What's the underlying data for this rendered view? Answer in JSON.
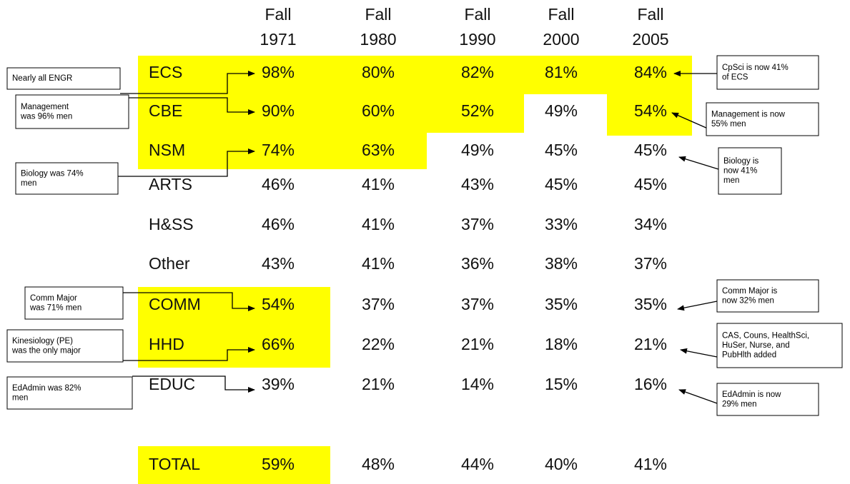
{
  "table": {
    "columns": [
      [
        "Fall",
        "1971"
      ],
      [
        "Fall",
        "1980"
      ],
      [
        "Fall",
        "1990"
      ],
      [
        "Fall",
        "2000"
      ],
      [
        "Fall",
        "2005"
      ]
    ],
    "rows": [
      [
        "ECS",
        "98%",
        "80%",
        "82%",
        "81%",
        "84%"
      ],
      [
        "CBE",
        "90%",
        "60%",
        "52%",
        "49%",
        "54%"
      ],
      [
        "NSM",
        "74%",
        "63%",
        "49%",
        "45%",
        "45%"
      ],
      [
        "ARTS",
        "46%",
        "41%",
        "43%",
        "45%",
        "45%"
      ],
      [
        "H&SS",
        "46%",
        "41%",
        "37%",
        "33%",
        "34%"
      ],
      [
        "Other",
        "43%",
        "41%",
        "36%",
        "38%",
        "37%"
      ],
      [
        "COMM",
        "54%",
        "37%",
        "37%",
        "35%",
        "35%"
      ],
      [
        "HHD",
        "66%",
        "22%",
        "21%",
        "18%",
        "21%"
      ],
      [
        "EDUC",
        "39%",
        "21%",
        "14%",
        "15%",
        "16%"
      ]
    ],
    "total": [
      "TOTAL",
      "59%",
      "48%",
      "44%",
      "40%",
      "41%"
    ]
  },
  "annotations": {
    "left": [
      [
        "Nearly all ENGR"
      ],
      [
        "Management",
        "was 96% men"
      ],
      [
        "Biology was 74%",
        "men"
      ],
      [
        "Comm Major",
        "was 71% men"
      ],
      [
        "Kinesiology (PE)",
        "was the only major"
      ],
      [
        "EdAdmin was 82%",
        "men"
      ]
    ],
    "right": [
      [
        "CpSci is now 41%",
        "of ECS"
      ],
      [
        "Management is now",
        "55% men"
      ],
      [
        "Biology is",
        "now 41%",
        "men"
      ],
      [
        "Comm Major is",
        "now 32% men"
      ],
      [
        "CAS, Couns, HealthSci,",
        "HuSer, Nurse, and",
        "PubHlth added"
      ],
      [
        "EdAdmin is now",
        "29% men"
      ]
    ]
  }
}
